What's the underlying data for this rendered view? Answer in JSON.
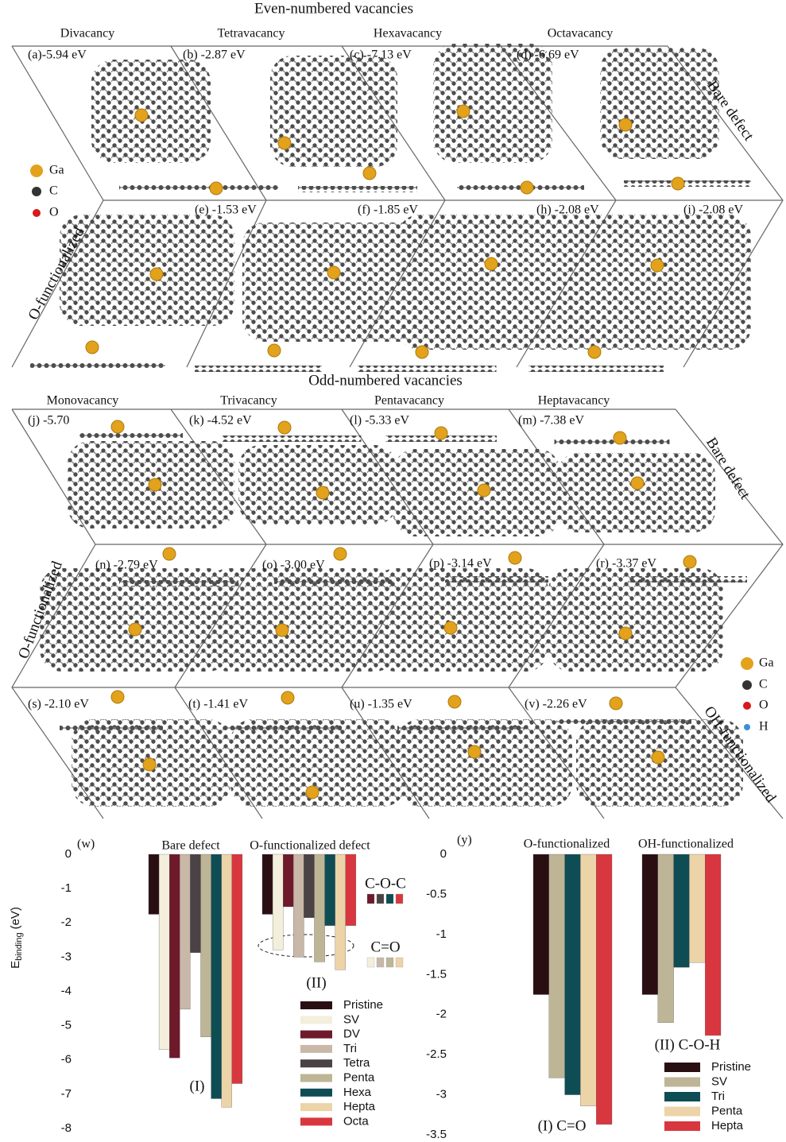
{
  "top_section": {
    "title": "Even-numbered vacancies",
    "columns": [
      "Divacancy",
      "Tetravacancy",
      "Hexavacancy",
      "Octavacancy"
    ],
    "panels": [
      "(a)-5.94 eV",
      "(b) -2.87 eV",
      "(c) -7.13 eV",
      "(d) -6.69 eV",
      "(e) -1.53 eV",
      "(f) -1.85 eV",
      "(h) -2.08 eV",
      "(i) -2.08 eV"
    ],
    "row_labels": [
      "Bare defect",
      "O-functionalized"
    ],
    "legend": [
      "Ga",
      "C",
      "O"
    ]
  },
  "bottom_section": {
    "title": "Odd-numbered vacancies",
    "columns": [
      "Monovacancy",
      "Trivacancy",
      "Pentavacancy",
      "Heptavacancy"
    ],
    "panels": [
      "(j) -5.70",
      "(k) -4.52 eV",
      "(l) -5.33 eV",
      "(m) -7.38 eV",
      "(n) -2.79 eV",
      "(o) -3.00 eV",
      "(p) -3.14 eV",
      "(r) -3.37 eV",
      "(s) -2.10 eV",
      "(t) -1.41 eV",
      "(u) -1.35 eV",
      "(v) -2.26 eV"
    ],
    "row_labels": [
      "Bare defect",
      "O-functionalized",
      "OH-functionalized"
    ],
    "legend": [
      "Ga",
      "C",
      "O",
      "H"
    ]
  },
  "chart_data": [
    {
      "type": "bar",
      "panel_label": "(w)",
      "y_label_main": "E",
      "y_label_sub": "binding",
      "y_label_unit": "(eV)",
      "categories": [
        "Bare defect",
        "O-functionalized defect"
      ],
      "group_labels": [
        "(I)",
        "(II)"
      ],
      "annotations": [
        "C-O-C",
        "C=O"
      ],
      "ylim": [
        -8,
        0
      ],
      "yticks": [
        0,
        -1,
        -2,
        -3,
        -4,
        -5,
        -6,
        -7,
        -8
      ],
      "series": [
        {
          "name": "Pristine",
          "color": "#2a0f12",
          "values": [
            -1.75,
            -1.75
          ]
        },
        {
          "name": "SV",
          "color": "#f3efdc",
          "values": [
            -5.7,
            -2.79
          ]
        },
        {
          "name": "DV",
          "color": "#6e1a2a",
          "values": [
            -5.94,
            -1.53
          ]
        },
        {
          "name": "Tri",
          "color": "#c9b8a8",
          "values": [
            -4.52,
            -3.0
          ]
        },
        {
          "name": "Tetra",
          "color": "#4a4244",
          "values": [
            -2.87,
            -1.85
          ]
        },
        {
          "name": "Penta",
          "color": "#bdb596",
          "values": [
            -5.33,
            -3.14
          ]
        },
        {
          "name": "Hexa",
          "color": "#0f4d55",
          "values": [
            -7.13,
            -2.08
          ]
        },
        {
          "name": "Hepta",
          "color": "#ecd3a8",
          "values": [
            -7.38,
            -3.37
          ]
        },
        {
          "name": "Octa",
          "color": "#d8373f",
          "values": [
            -6.69,
            -2.08
          ]
        }
      ]
    },
    {
      "type": "bar",
      "panel_label": "(y)",
      "categories": [
        "O-functionalized",
        "OH-functionalized"
      ],
      "group_labels": [
        "(I) C=O",
        "(II) C-O-H"
      ],
      "ylim": [
        -3.5,
        0
      ],
      "yticks": [
        0,
        -0.5,
        -1,
        -1.5,
        -2,
        -2.5,
        -3,
        -3.5
      ],
      "series": [
        {
          "name": "Pristine",
          "color": "#2a0f12",
          "values": [
            -1.75,
            -1.75
          ]
        },
        {
          "name": "SV",
          "color": "#bdb596",
          "values": [
            -2.79,
            -2.1
          ]
        },
        {
          "name": "Tri",
          "color": "#0f4d55",
          "values": [
            -3.0,
            -1.41
          ]
        },
        {
          "name": "Penta",
          "color": "#ecd3a8",
          "values": [
            -3.14,
            -1.35
          ]
        },
        {
          "name": "Hepta",
          "color": "#d8373f",
          "values": [
            -3.37,
            -2.26
          ]
        }
      ]
    }
  ]
}
